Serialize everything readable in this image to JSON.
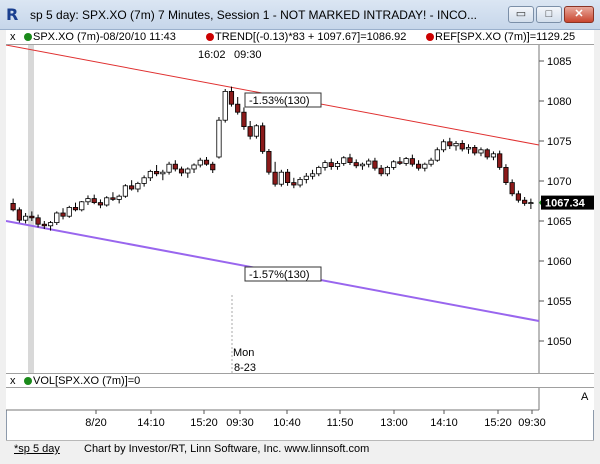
{
  "window": {
    "title": "sp 5 day: SPX.XO (7m) 7 Minutes, Session 1 - NOT MARKED INTRADAY! - INCO...",
    "app_icon": "R",
    "buttons": {
      "minimize": "▭",
      "maximize": "□",
      "close": "✕"
    }
  },
  "header": {
    "close": "x",
    "series_label": "SPX.XO (7m)-08/20/10 11:43",
    "trend_label": "TREND[(-0.13)*83 + 1097.67]=1086.92",
    "ref_label": "REF[SPX.XO (7m)]=1129.25",
    "colors": {
      "series": "#006400",
      "trend": "#cc0000",
      "ref": "#cc0000"
    }
  },
  "chart_data": {
    "type": "candlestick",
    "ylim": [
      1046,
      1087
    ],
    "y_ticks": [
      1050,
      1055,
      1060,
      1065,
      1070,
      1075,
      1080,
      1085
    ],
    "x_ticks": [
      "8/20",
      "14:10",
      "15:20",
      "09:30",
      "10:40",
      "11:50",
      "13:00",
      "14:10",
      "15:20",
      "09:30"
    ],
    "last_price_label": "1067.34",
    "annotations": {
      "top_time_left": "16:02",
      "top_time_right": "09:30",
      "upper_pct": "-1.53%(130)",
      "lower_pct": "-1.57%(130)",
      "day_name": "Mon",
      "day_date": "8-23"
    },
    "trend_lines": [
      {
        "name": "upper-trendline",
        "color": "#e03030",
        "start": 1087,
        "end": 1074.5
      },
      {
        "name": "lower-trendline",
        "color": "#9966ee",
        "start": 1065,
        "end": 1052.5
      }
    ],
    "candles": [
      [
        1067.2,
        1067.8,
        1066.2,
        1066.4
      ],
      [
        1066.4,
        1066.7,
        1064.8,
        1065.1
      ],
      [
        1065.1,
        1066.0,
        1064.7,
        1065.6
      ],
      [
        1065.6,
        1066.2,
        1065.0,
        1065.4
      ],
      [
        1065.4,
        1065.8,
        1064.2,
        1064.6
      ],
      [
        1064.6,
        1065.0,
        1064.0,
        1064.4
      ],
      [
        1064.4,
        1065.0,
        1063.8,
        1064.8
      ],
      [
        1064.8,
        1066.2,
        1064.5,
        1066.0
      ],
      [
        1066.0,
        1066.6,
        1065.2,
        1065.6
      ],
      [
        1065.6,
        1066.9,
        1065.4,
        1066.7
      ],
      [
        1066.7,
        1067.3,
        1066.2,
        1066.4
      ],
      [
        1066.4,
        1067.5,
        1066.2,
        1067.4
      ],
      [
        1067.4,
        1068.2,
        1067.0,
        1067.8
      ],
      [
        1067.8,
        1068.3,
        1067.1,
        1067.3
      ],
      [
        1067.3,
        1067.7,
        1066.6,
        1067.0
      ],
      [
        1067.0,
        1068.1,
        1066.8,
        1067.9
      ],
      [
        1067.9,
        1068.6,
        1067.5,
        1067.7
      ],
      [
        1067.7,
        1068.3,
        1067.2,
        1068.1
      ],
      [
        1068.1,
        1069.6,
        1067.9,
        1069.4
      ],
      [
        1069.4,
        1070.1,
        1068.8,
        1069.0
      ],
      [
        1069.0,
        1069.9,
        1068.6,
        1069.7
      ],
      [
        1069.7,
        1070.7,
        1069.3,
        1070.4
      ],
      [
        1070.4,
        1071.4,
        1070.0,
        1071.2
      ],
      [
        1071.2,
        1072.0,
        1070.6,
        1070.9
      ],
      [
        1070.9,
        1071.4,
        1070.1,
        1071.1
      ],
      [
        1071.1,
        1072.4,
        1070.8,
        1072.1
      ],
      [
        1072.1,
        1072.6,
        1071.2,
        1071.5
      ],
      [
        1071.5,
        1071.8,
        1070.6,
        1071.0
      ],
      [
        1071.0,
        1071.7,
        1070.4,
        1071.5
      ],
      [
        1071.5,
        1072.2,
        1071.0,
        1072.0
      ],
      [
        1072.0,
        1072.9,
        1071.7,
        1072.6
      ],
      [
        1072.6,
        1073.0,
        1071.9,
        1072.1
      ],
      [
        1072.1,
        1072.4,
        1071.0,
        1071.4
      ],
      [
        1073.0,
        1078.0,
        1072.8,
        1077.6
      ],
      [
        1077.6,
        1081.5,
        1077.3,
        1081.2
      ],
      [
        1081.2,
        1081.8,
        1079.3,
        1079.6
      ],
      [
        1079.6,
        1080.5,
        1078.3,
        1078.6
      ],
      [
        1078.6,
        1079.2,
        1076.4,
        1076.8
      ],
      [
        1076.8,
        1077.5,
        1075.2,
        1075.6
      ],
      [
        1075.6,
        1077.1,
        1075.3,
        1076.9
      ],
      [
        1076.9,
        1077.3,
        1073.4,
        1073.7
      ],
      [
        1073.7,
        1074.0,
        1070.8,
        1071.1
      ],
      [
        1071.1,
        1072.4,
        1069.3,
        1069.6
      ],
      [
        1069.6,
        1071.4,
        1069.3,
        1071.1
      ],
      [
        1071.1,
        1071.5,
        1069.4,
        1069.8
      ],
      [
        1069.8,
        1070.4,
        1069.1,
        1069.5
      ],
      [
        1069.5,
        1070.5,
        1069.2,
        1070.2
      ],
      [
        1070.2,
        1071.0,
        1069.7,
        1070.6
      ],
      [
        1070.6,
        1071.4,
        1070.2,
        1070.9
      ],
      [
        1070.9,
        1071.9,
        1070.6,
        1071.7
      ],
      [
        1071.7,
        1072.6,
        1071.3,
        1072.3
      ],
      [
        1072.3,
        1072.8,
        1071.4,
        1071.8
      ],
      [
        1071.8,
        1072.5,
        1071.4,
        1072.2
      ],
      [
        1072.2,
        1073.1,
        1071.9,
        1072.9
      ],
      [
        1072.9,
        1073.4,
        1072.0,
        1072.3
      ],
      [
        1072.3,
        1072.7,
        1071.6,
        1071.9
      ],
      [
        1071.9,
        1072.3,
        1071.4,
        1072.1
      ],
      [
        1072.1,
        1072.8,
        1071.7,
        1072.5
      ],
      [
        1072.5,
        1072.9,
        1071.3,
        1071.6
      ],
      [
        1071.6,
        1072.0,
        1070.6,
        1070.9
      ],
      [
        1070.9,
        1071.9,
        1070.6,
        1071.7
      ],
      [
        1071.7,
        1072.6,
        1071.4,
        1072.4
      ],
      [
        1072.4,
        1073.0,
        1072.0,
        1072.2
      ],
      [
        1072.2,
        1073.0,
        1071.9,
        1072.8
      ],
      [
        1072.8,
        1073.3,
        1071.8,
        1072.1
      ],
      [
        1072.1,
        1072.6,
        1071.3,
        1071.6
      ],
      [
        1071.6,
        1072.3,
        1071.2,
        1072.1
      ],
      [
        1072.1,
        1072.9,
        1071.8,
        1072.6
      ],
      [
        1072.6,
        1074.2,
        1072.4,
        1073.9
      ],
      [
        1073.9,
        1075.2,
        1073.6,
        1074.9
      ],
      [
        1074.9,
        1075.4,
        1074.0,
        1074.4
      ],
      [
        1074.4,
        1075.0,
        1073.8,
        1074.7
      ],
      [
        1074.7,
        1075.1,
        1073.7,
        1074.0
      ],
      [
        1074.0,
        1074.6,
        1073.4,
        1074.2
      ],
      [
        1074.2,
        1074.5,
        1073.2,
        1073.5
      ],
      [
        1073.5,
        1074.2,
        1073.1,
        1073.9
      ],
      [
        1073.9,
        1074.1,
        1072.7,
        1073.0
      ],
      [
        1073.0,
        1073.7,
        1072.6,
        1073.4
      ],
      [
        1073.4,
        1073.8,
        1071.4,
        1071.7
      ],
      [
        1071.7,
        1072.1,
        1069.5,
        1069.8
      ],
      [
        1069.8,
        1070.2,
        1068.1,
        1068.4
      ],
      [
        1068.4,
        1068.8,
        1067.3,
        1067.6
      ],
      [
        1067.6,
        1068.0,
        1066.9,
        1067.2
      ],
      [
        1067.2,
        1067.8,
        1066.5,
        1067.3
      ]
    ]
  },
  "volume": {
    "close": "x",
    "label": "VOL[SPX.XO (7m)]=0",
    "scale_label": "A"
  },
  "footer": {
    "tab_label": "*sp 5 day",
    "credit": "Chart by Investor/RT, Linn Software, Inc. www.linnsoft.com"
  }
}
